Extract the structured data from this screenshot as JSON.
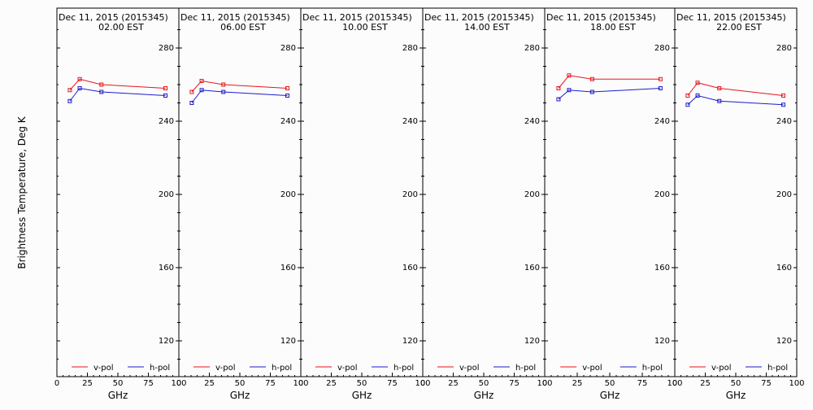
{
  "chart_data": {
    "type": "line",
    "ylabel": "Brightness Temperature, Deg K",
    "xlabel": "GHz",
    "xlim": [
      0,
      100
    ],
    "ylim": [
      100,
      295
    ],
    "xticks": [
      "0",
      "25",
      "50",
      "75",
      "100"
    ],
    "yticks": [
      120,
      160,
      200,
      240,
      280
    ],
    "legend_position": "bottom",
    "colors": {
      "v-pol": "#e8141e",
      "h-pol": "#1c1ccc"
    },
    "panels": [
      {
        "title_line1": "Dec 11, 2015 (2015345)",
        "title_line2": "02.00 EST",
        "series": [
          {
            "name": "v-pol",
            "x": [
              10.6,
              18.7,
              36.5,
              89.0
            ],
            "values": [
              257,
              263,
              260,
              258
            ]
          },
          {
            "name": "h-pol",
            "x": [
              10.6,
              18.7,
              36.5,
              89.0
            ],
            "values": [
              251,
              258,
              256,
              254
            ]
          }
        ]
      },
      {
        "title_line1": "Dec 11, 2015 (2015345)",
        "title_line2": "06.00 EST",
        "series": [
          {
            "name": "v-pol",
            "x": [
              10.6,
              18.7,
              36.5,
              89.0
            ],
            "values": [
              256,
              262,
              260,
              258
            ]
          },
          {
            "name": "h-pol",
            "x": [
              10.6,
              18.7,
              36.5,
              89.0
            ],
            "values": [
              250,
              257,
              256,
              254
            ]
          }
        ]
      },
      {
        "title_line1": "Dec 11, 2015 (2015345)",
        "title_line2": "10.00 EST",
        "series": [
          {
            "name": "v-pol",
            "x": [],
            "values": []
          },
          {
            "name": "h-pol",
            "x": [],
            "values": []
          }
        ]
      },
      {
        "title_line1": "Dec 11, 2015 (2015345)",
        "title_line2": "14.00 EST",
        "series": [
          {
            "name": "v-pol",
            "x": [],
            "values": []
          },
          {
            "name": "h-pol",
            "x": [],
            "values": []
          }
        ]
      },
      {
        "title_line1": "Dec 11, 2015 (2015345)",
        "title_line2": "18.00 EST",
        "series": [
          {
            "name": "v-pol",
            "x": [
              10.6,
              18.7,
              36.5,
              89.0
            ],
            "values": [
              258,
              265,
              263,
              263
            ]
          },
          {
            "name": "h-pol",
            "x": [
              10.6,
              18.7,
              36.5,
              89.0
            ],
            "values": [
              252,
              257,
              256,
              258
            ]
          }
        ]
      },
      {
        "title_line1": "Dec 11, 2015 (2015345)",
        "title_line2": "22.00 EST",
        "series": [
          {
            "name": "v-pol",
            "x": [
              10.6,
              18.7,
              36.5,
              89.0
            ],
            "values": [
              254,
              261,
              258,
              254
            ]
          },
          {
            "name": "h-pol",
            "x": [
              10.6,
              18.7,
              36.5,
              89.0
            ],
            "values": [
              249,
              254,
              251,
              249
            ]
          }
        ]
      }
    ]
  }
}
